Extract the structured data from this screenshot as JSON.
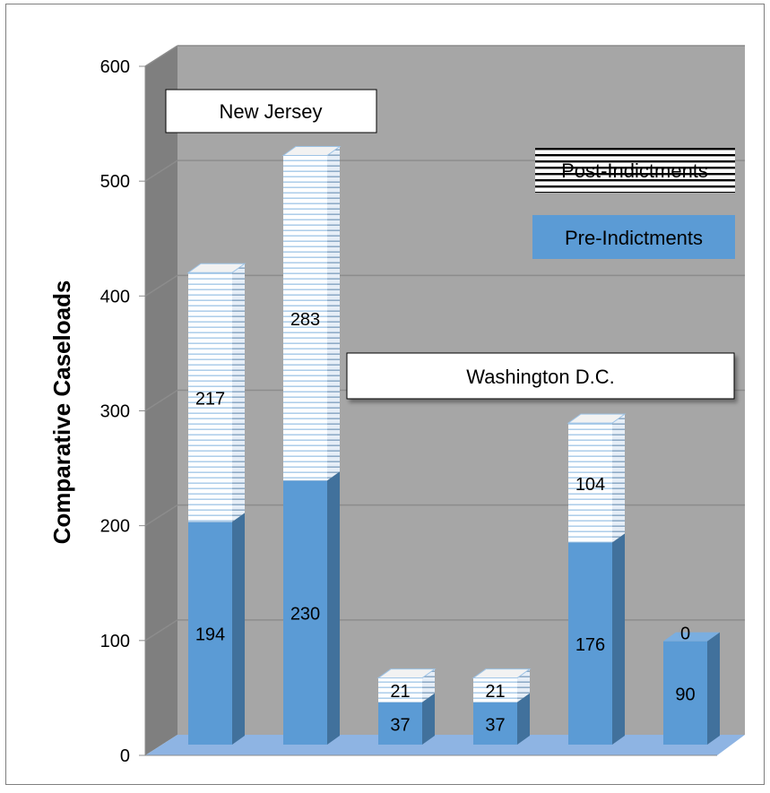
{
  "chart_data": {
    "type": "bar",
    "stacked": true,
    "view": "3d",
    "categories": [
      "",
      "",
      "",
      "",
      "",
      ""
    ],
    "series": [
      {
        "name": "Pre-Indictments",
        "values": [
          194,
          230,
          37,
          37,
          176,
          90
        ],
        "color": "#5b9bd5"
      },
      {
        "name": "Post-Indictments",
        "values": [
          217,
          283,
          21,
          21,
          104,
          0
        ],
        "color": "#ffffff"
      }
    ],
    "data_labels": {
      "pre": [
        "194",
        "230",
        "37",
        "37",
        "176",
        "90"
      ],
      "post": [
        "217",
        "283",
        "21",
        "21",
        "104",
        "0"
      ]
    },
    "title": "",
    "xlabel": "",
    "ylabel": "Comparative Caseloads",
    "ylim": [
      0,
      600
    ],
    "yticks": [
      "0",
      "100",
      "200",
      "300",
      "400",
      "500",
      "600"
    ],
    "grid": true,
    "legend": {
      "placement": "right",
      "post_label": "Post-Indictments",
      "pre_label": "Pre-Indictments"
    },
    "annotations": {
      "group1": "New Jersey",
      "group2": "Washington D.C."
    },
    "colors": {
      "wall": "#a6a6a6",
      "side_wall": "#7f7f7f",
      "floor": "#8eb4e3",
      "bar": "#5b9bd5",
      "bar_side": "#41719c",
      "bar_top": "#7aaee0",
      "gridline": "#8c8c8c",
      "stripe": "#5b9bd5"
    }
  }
}
